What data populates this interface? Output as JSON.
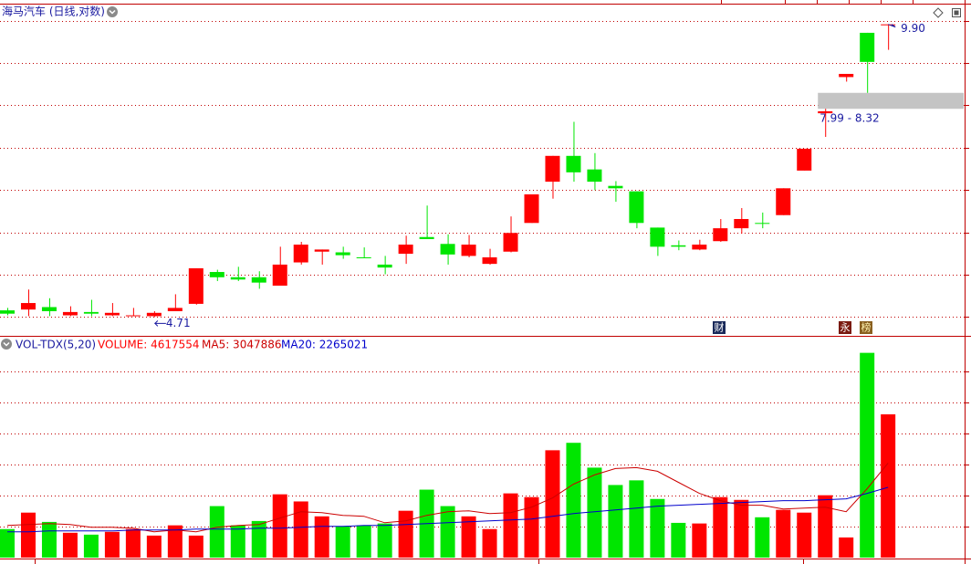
{
  "chart_data": [
    {
      "type": "candlestick",
      "title": "海马汽车 (日线,对数)",
      "log_scale": true,
      "grid": true,
      "ylim": [
        4.49,
        10.41
      ],
      "yticks": [
        4.71,
        5.24,
        5.84,
        6.5,
        7.23,
        8.06,
        8.97,
        9.99
      ],
      "up_color": "#ff0000",
      "down_color": "#00e600",
      "open": [
        4.79,
        4.8,
        4.83,
        4.73,
        4.77,
        4.73,
        4.72,
        4.72,
        4.78,
        4.87,
        5.28,
        5.21,
        5.21,
        5.1,
        5.41,
        5.56,
        5.55,
        5.48,
        5.38,
        5.53,
        5.77,
        5.67,
        5.5,
        5.39,
        5.56,
        5.98,
        6.64,
        7.09,
        6.85,
        6.57,
        6.48,
        5.91,
        5.65,
        5.59,
        5.71,
        5.9,
        5.98,
        6.1,
        6.83,
        7.9,
        8.66,
        9.69,
        9.9
      ],
      "high": [
        4.82,
        5.05,
        4.94,
        4.84,
        4.92,
        4.88,
        4.82,
        4.78,
        4.99,
        5.33,
        5.31,
        5.35,
        5.29,
        5.63,
        5.7,
        5.59,
        5.63,
        5.62,
        5.5,
        5.79,
        6.25,
        5.81,
        5.8,
        5.6,
        6.08,
        6.43,
        7.09,
        7.73,
        7.14,
        6.65,
        6.48,
        5.91,
        5.72,
        5.73,
        6.04,
        6.21,
        6.14,
        6.53,
        7.22,
        7.99,
        8.73,
        9.69,
        9.9
      ],
      "low": [
        4.73,
        4.72,
        4.72,
        4.72,
        4.72,
        4.72,
        4.72,
        4.71,
        4.78,
        4.86,
        5.16,
        5.16,
        5.06,
        5.1,
        5.38,
        5.38,
        5.46,
        5.47,
        5.25,
        5.39,
        5.74,
        5.38,
        5.48,
        5.38,
        5.55,
        5.98,
        6.36,
        6.64,
        6.5,
        6.31,
        5.9,
        5.5,
        5.58,
        5.58,
        5.7,
        5.82,
        5.9,
        6.1,
        6.83,
        7.44,
        8.56,
        8.32,
        9.28
      ],
      "close": [
        4.75,
        4.88,
        4.78,
        4.77,
        4.75,
        4.76,
        4.73,
        4.76,
        4.82,
        5.33,
        5.21,
        5.18,
        5.14,
        5.38,
        5.66,
        5.59,
        5.51,
        5.47,
        5.34,
        5.66,
        5.74,
        5.52,
        5.66,
        5.48,
        5.83,
        6.43,
        7.09,
        6.8,
        6.64,
        6.53,
        5.98,
        5.63,
        5.63,
        5.66,
        5.9,
        6.04,
        5.97,
        6.53,
        7.22,
        7.94,
        8.73,
        9.0,
        9.9
      ],
      "low_marker": 4.71,
      "high_marker": {
        "value": 9.9,
        "label": "9.90"
      },
      "gap": {
        "range": [
          7.99,
          8.32
        ],
        "label": "7.99 - 8.32"
      },
      "badges": [
        "财",
        "永",
        "榜"
      ]
    },
    {
      "type": "bar",
      "title": "VOL-TDX(5,20)",
      "ylim": [
        0,
        7030000
      ],
      "yticks": [
        1000000,
        2000000,
        3000000,
        4000000,
        5000000,
        6000000
      ],
      "grid": true,
      "up_color": "#ff0000",
      "down_color": "#00e600",
      "series": [
        {
          "name": "VOLUME: 4617554",
          "color": "#ff0000",
          "kind": "bar",
          "values": [
            920000,
            1450000,
            1150000,
            800000,
            740000,
            830000,
            920000,
            710000,
            1040000,
            710000,
            1660000,
            1040000,
            1180000,
            2040000,
            1810000,
            1330000,
            1010000,
            1040000,
            1100000,
            1510000,
            2190000,
            1660000,
            1330000,
            920000,
            2070000,
            1950000,
            3460000,
            3700000,
            2900000,
            2340000,
            2490000,
            1890000,
            1120000,
            1100000,
            1950000,
            1860000,
            1300000,
            1540000,
            1450000,
            2010000,
            650000,
            6600000,
            4617554
          ]
        },
        {
          "name": "MA5: 3047886",
          "color": "#cc0000",
          "kind": "line",
          "values": [
            1036000,
            1065600,
            1095200,
            1065600,
            976800,
            976800,
            947200,
            828800,
            888000,
            828800,
            976800,
            1036000,
            1065600,
            1272800,
            1480000,
            1450400,
            1361600,
            1332000,
            1124800,
            1184000,
            1361600,
            1480000,
            1509600,
            1420800,
            1450400,
            1628000,
            1924000,
            2368000,
            2664000,
            2871200,
            2900800,
            2782400,
            2427200,
            2072000,
            1835200,
            1687200,
            1687200,
            1568800,
            1598400,
            1628000,
            1480000,
            2220000,
            3047886
          ]
        },
        {
          "name": "MA20: 2265021",
          "color": "#0000cc",
          "kind": "line",
          "values": [
            828800,
            828800,
            858400,
            858400,
            858400,
            858400,
            888000,
            888000,
            888000,
            917600,
            917600,
            917600,
            947200,
            947200,
            976800,
            1006400,
            1006400,
            1036000,
            1036000,
            1065600,
            1095200,
            1124800,
            1154400,
            1184000,
            1213600,
            1243200,
            1332000,
            1420800,
            1480000,
            1539200,
            1598400,
            1657600,
            1687200,
            1716800,
            1746400,
            1776000,
            1805600,
            1835200,
            1835200,
            1864800,
            1894400,
            2072000,
            2265021
          ]
        }
      ]
    }
  ]
}
